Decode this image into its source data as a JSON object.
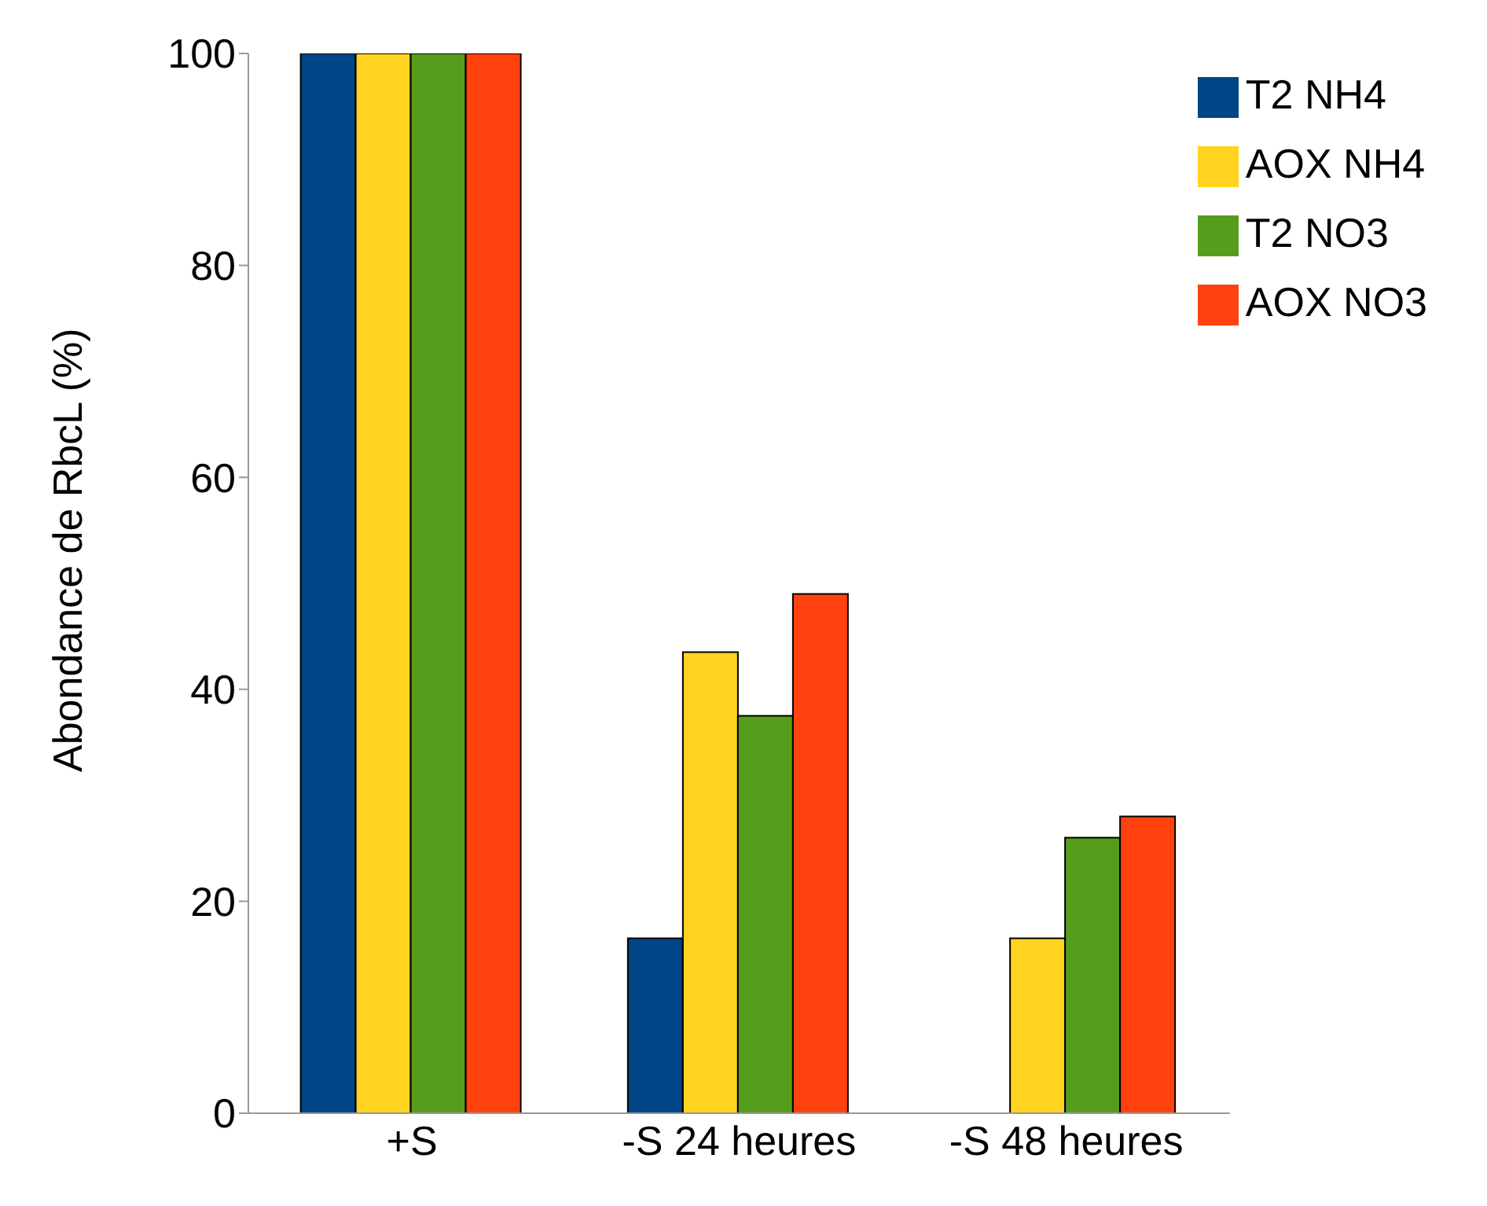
{
  "chart_data": {
    "type": "bar",
    "ylabel": "Abondance de RbcL  (%)",
    "categories": [
      "+S",
      "-S 24 heures",
      "-S 48 heures"
    ],
    "series": [
      {
        "name": "T2 NH4",
        "color": "#004586",
        "values": [
          100,
          16.5,
          0
        ]
      },
      {
        "name": "AOX NH4",
        "color": "#ffd320",
        "values": [
          100,
          43.5,
          16.5
        ]
      },
      {
        "name": "T2 NO3",
        "color": "#579d1c",
        "values": [
          100,
          37.5,
          26
        ]
      },
      {
        "name": "AOX NO3",
        "color": "#ff420e",
        "values": [
          100,
          49,
          28
        ]
      }
    ],
    "ylim": [
      0,
      100
    ],
    "yticks": [
      0,
      20,
      40,
      60,
      80,
      100
    ],
    "grid": false,
    "legend": "top right"
  }
}
